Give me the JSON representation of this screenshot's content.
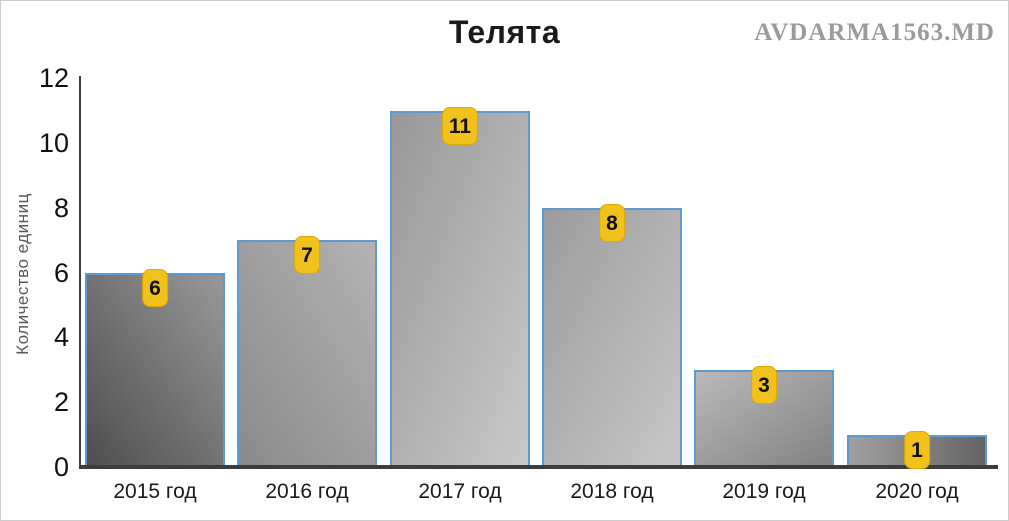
{
  "watermark": "AVDARMA1563.MD",
  "chart_data": {
    "type": "bar",
    "title": "Телята",
    "categories": [
      "2015 год",
      "2016 год",
      "2017 год",
      "2018 год",
      "2019 год",
      "2020 год"
    ],
    "values": [
      6,
      7,
      11,
      8,
      3,
      1
    ],
    "xlabel": "",
    "ylabel": "Количество  единиц",
    "ylim": [
      0,
      12
    ],
    "yticks": [
      0,
      2,
      4,
      6,
      8,
      10,
      12
    ],
    "grid": false,
    "legend": false,
    "data_labels": [
      "6",
      "7",
      "11",
      "8",
      "3",
      "1"
    ],
    "bar_gradients": [
      {
        "direction": "to top right",
        "from": "#4e4e4e",
        "to": "#989898"
      },
      {
        "direction": "to top right",
        "from": "#8a8a8a",
        "to": "#b3b3b3"
      },
      {
        "direction": "to bottom right",
        "from": "#989898",
        "to": "#c9c9c9"
      },
      {
        "direction": "to bottom right",
        "from": "#9c9c9c",
        "to": "#c7c7c7"
      },
      {
        "direction": "to bottom right",
        "from": "#b9b9b9",
        "to": "#828282"
      },
      {
        "direction": "to right",
        "from": "#a0a0a0",
        "to": "#646464"
      }
    ]
  },
  "colors": {
    "axis_line": "#3d3d3d",
    "tick_text": "#111111",
    "axis_title_text": "#595959",
    "title_text": "#1a1a1a",
    "watermark_text": "#9b9b9b",
    "bar_border": "#5B9BD5",
    "value_label_bg": "#F1C21B",
    "value_label_border": "#DCA700",
    "value_label_text": "#111111",
    "frame_border": "#cccccc"
  }
}
